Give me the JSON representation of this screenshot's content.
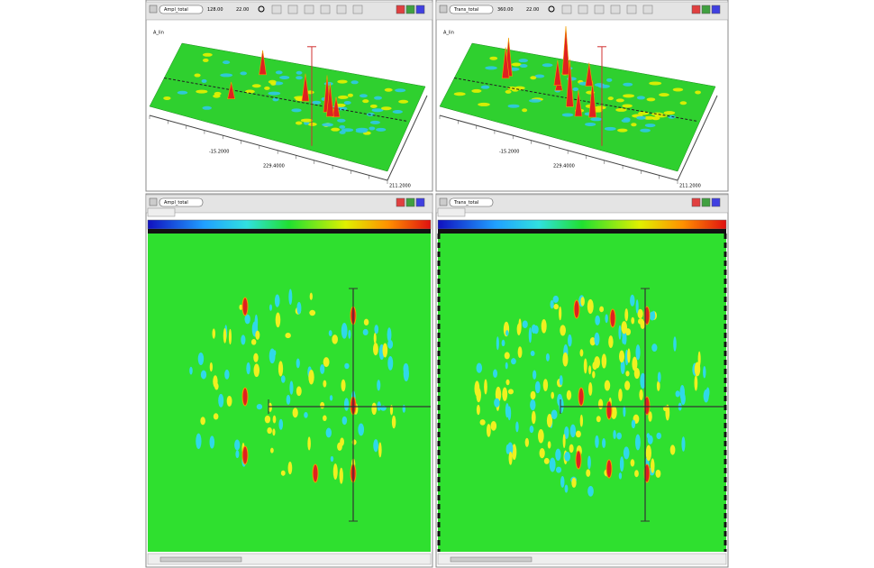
{
  "top_panels": [
    {
      "field": "Ampl_total",
      "zoom": "128.00",
      "scale": "22.00",
      "corner": "A_lin",
      "axis_labels": [
        "-15.2000",
        "229.4000",
        "211.2000"
      ]
    },
    {
      "field": "Trans_total",
      "zoom": "360.00",
      "scale": "22.00",
      "corner": "A_lin",
      "axis_labels": [
        "-15.2000",
        "229.4000",
        "211.2000"
      ]
    }
  ],
  "bottom_panels": [
    {
      "field": "Ampl_total"
    },
    {
      "field": "Trans_total"
    }
  ]
}
